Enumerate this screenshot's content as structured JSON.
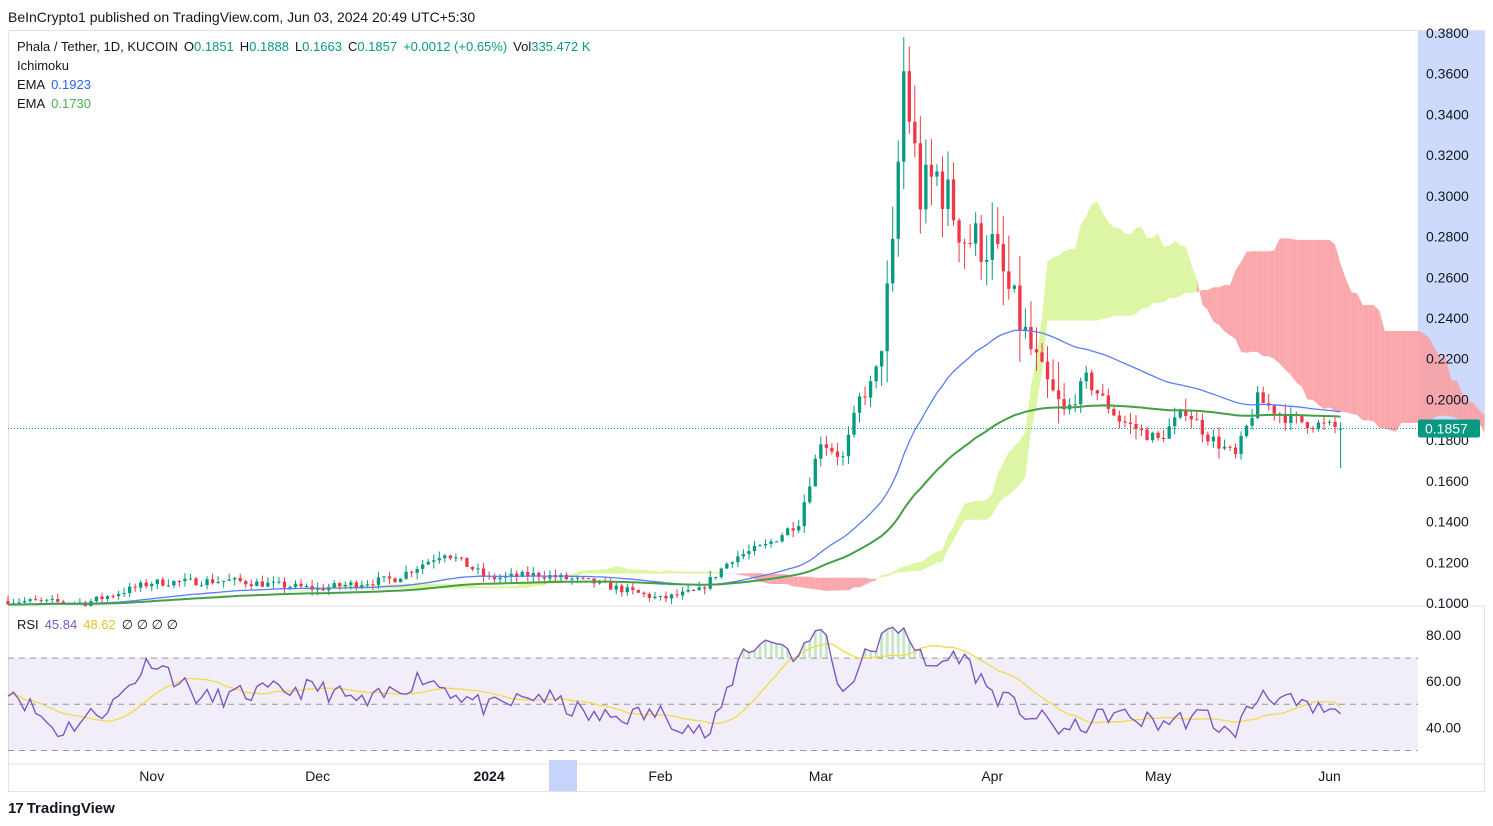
{
  "header": "BeInCrypto1 published on TradingView.com, Jun 03, 2024 20:49 UTC+5:30",
  "legend": {
    "symbol": "Phala / Tether, 1D, KUCOIN",
    "o_label": "O",
    "o": "0.1851",
    "h_label": "H",
    "h": "0.1888",
    "l_label": "L",
    "l": "0.1663",
    "c_label": "C",
    "c": "0.1857",
    "change": "+0.0012 (+0.65%)",
    "vol_label": "Vol",
    "vol": "335.472 K",
    "ichimoku": "Ichimoku",
    "ema1_label": "EMA",
    "ema1": "0.1923",
    "ema2_label": "EMA",
    "ema2": "0.1730"
  },
  "rsi_legend": {
    "label": "RSI",
    "rsi": "45.84",
    "ma": "48.62",
    "na": "∅ ∅ ∅ ∅"
  },
  "footer": {
    "brand": "TradingView",
    "logo": "17"
  },
  "colors": {
    "up": "#089981",
    "down": "#f23645",
    "ema_fast": "#5b7cfa",
    "ema_slow": "#43a047",
    "cloud_bull": "#d9f59a",
    "cloud_bear": "#fb9fa3",
    "rsi": "#7e57c2",
    "rsi_ma": "#f5d94a",
    "price_tag": "#089981",
    "axis_highlight": "#c6d4fb"
  },
  "chart_data": [
    {
      "type": "candlestick",
      "title": "Phala / Tether, 1D, KUCOIN",
      "interval": "1D",
      "y_axis": {
        "ticks": [
          0.1,
          0.12,
          0.14,
          0.16,
          0.18,
          0.2,
          0.22,
          0.24,
          0.26,
          0.28,
          0.3,
          0.32,
          0.34,
          0.36,
          0.38
        ],
        "tick_labels": [
          "0.1000",
          "0.1200",
          "0.1400",
          "0.1600",
          "0.1800",
          "0.2000",
          "0.2200",
          "0.2400",
          "0.2600",
          "0.2800",
          "0.3000",
          "0.3200",
          "0.3400",
          "0.3600",
          "0.3800"
        ],
        "ylim": [
          0.099,
          0.381
        ]
      },
      "x_axis": {
        "labels": [
          "Nov",
          "Dec",
          "2024",
          "Feb",
          "Mar",
          "Apr",
          "May",
          "Jun"
        ],
        "label_dates": [
          "2023-11-01",
          "2023-12-01",
          "2024-01-01",
          "2024-02-01",
          "2024-03-01",
          "2024-04-01",
          "2024-05-01",
          "2024-06-01"
        ],
        "xlim": [
          "2023-10-06",
          "2024-06-17"
        ]
      },
      "last_price": {
        "value": 0.1857,
        "label": "0.1857"
      },
      "anchors": {
        "dates": [
          "2023-10-06",
          "2023-10-20",
          "2023-11-01",
          "2023-11-15",
          "2023-12-01",
          "2023-12-15",
          "2023-12-24",
          "2024-01-01",
          "2024-01-10",
          "2024-01-20",
          "2024-02-01",
          "2024-02-08",
          "2024-02-14",
          "2024-02-20",
          "2024-02-26",
          "2024-03-01",
          "2024-03-05",
          "2024-03-08",
          "2024-03-11",
          "2024-03-14",
          "2024-03-16",
          "2024-03-19",
          "2024-03-22",
          "2024-03-27",
          "2024-04-01",
          "2024-04-05",
          "2024-04-10",
          "2024-04-14",
          "2024-04-18",
          "2024-04-24",
          "2024-05-01",
          "2024-05-06",
          "2024-05-10",
          "2024-05-15",
          "2024-05-19",
          "2024-05-25",
          "2024-06-03"
        ],
        "close": [
          0.101,
          0.1,
          0.11,
          0.111,
          0.107,
          0.112,
          0.125,
          0.112,
          0.114,
          0.11,
          0.102,
          0.106,
          0.122,
          0.128,
          0.14,
          0.18,
          0.171,
          0.2,
          0.21,
          0.27,
          0.36,
          0.3,
          0.31,
          0.28,
          0.275,
          0.245,
          0.21,
          0.192,
          0.21,
          0.19,
          0.18,
          0.195,
          0.182,
          0.172,
          0.2,
          0.19,
          0.1857
        ]
      },
      "ema_fast": {
        "label": "EMA",
        "value": 0.1923
      },
      "ema_slow": {
        "label": "EMA",
        "value": 0.173
      },
      "ichimoku": {
        "label": "Ichimoku"
      }
    },
    {
      "type": "line",
      "title": "RSI",
      "series": [
        {
          "name": "RSI",
          "last": 45.84
        },
        {
          "name": "",
          "last": 48.62
        }
      ],
      "y_axis": {
        "ticks": [
          40,
          60,
          80
        ],
        "tick_labels": [
          "40.00",
          "60.00",
          "80.00"
        ],
        "ylim": [
          25,
          90
        ]
      },
      "bands": {
        "upper": 70,
        "middle": 50,
        "lower": 30
      },
      "anchors": {
        "dates": [
          "2023-10-06",
          "2023-10-15",
          "2023-10-25",
          "2023-11-01",
          "2023-11-10",
          "2023-11-20",
          "2023-12-01",
          "2023-12-10",
          "2023-12-20",
          "2024-01-01",
          "2024-01-10",
          "2024-01-20",
          "2024-02-01",
          "2024-02-10",
          "2024-02-16",
          "2024-02-22",
          "2024-02-26",
          "2024-03-01",
          "2024-03-05",
          "2024-03-10",
          "2024-03-16",
          "2024-03-20",
          "2024-03-26",
          "2024-04-01",
          "2024-04-08",
          "2024-04-15",
          "2024-04-22",
          "2024-05-01",
          "2024-05-10",
          "2024-05-14",
          "2024-05-20",
          "2024-05-27",
          "2024-06-03"
        ],
        "rsi": [
          58,
          38,
          50,
          70,
          52,
          55,
          57,
          50,
          62,
          48,
          54,
          44,
          46,
          36,
          74,
          78,
          70,
          85,
          55,
          74,
          85,
          65,
          72,
          55,
          45,
          38,
          46,
          42,
          45,
          36,
          56,
          48,
          45.84
        ]
      }
    }
  ]
}
